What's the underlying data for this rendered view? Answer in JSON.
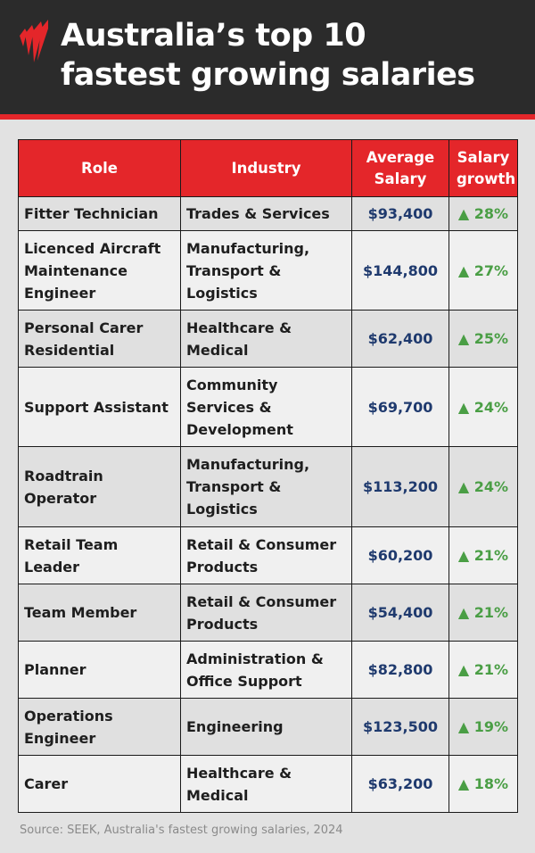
{
  "header": {
    "title_line1": "Australia’s top 10",
    "title_line2": "fastest growing salaries",
    "logo": "sbs-logo"
  },
  "colors": {
    "header_bg": "#2b2b2b",
    "accent_red": "#e4262a",
    "salary_text": "#1f3a6e",
    "growth_green": "#4a9e45"
  },
  "chart_data": {
    "type": "table",
    "columns": [
      "Role",
      "Industry",
      "Average Salary",
      "Salary growth"
    ],
    "growth_icon": "triangle-up-icon",
    "rows": [
      {
        "role": "Fitter Technician",
        "industry": "Trades & Services",
        "salary": "$93,400",
        "growth": "28%"
      },
      {
        "role": "Licenced Aircraft Maintenance Engineer",
        "industry": "Manufacturing, Transport & Logistics",
        "salary": "$144,800",
        "growth": "27%"
      },
      {
        "role": "Personal Carer Residential",
        "industry": "Healthcare & Medical",
        "salary": "$62,400",
        "growth": "25%"
      },
      {
        "role": "Support Assistant",
        "industry": "Community Services & Development",
        "salary": "$69,700",
        "growth": "24%"
      },
      {
        "role": "Roadtrain Operator",
        "industry": "Manufacturing, Transport & Logistics",
        "salary": "$113,200",
        "growth": "24%"
      },
      {
        "role": "Retail Team Leader",
        "industry": "Retail & Consumer Products",
        "salary": "$60,200",
        "growth": "21%"
      },
      {
        "role": "Team Member",
        "industry": "Retail & Consumer Products",
        "salary": "$54,400",
        "growth": "21%"
      },
      {
        "role": "Planner",
        "industry": "Administration & Office Support",
        "salary": "$82,800",
        "growth": "21%"
      },
      {
        "role": "Operations Engineer",
        "industry": "Engineering",
        "salary": "$123,500",
        "growth": "19%"
      },
      {
        "role": "Carer",
        "industry": "Healthcare & Medical",
        "salary": "$63,200",
        "growth": "18%"
      }
    ]
  },
  "source": "Source: SEEK, Australia's fastest growing salaries, 2024"
}
